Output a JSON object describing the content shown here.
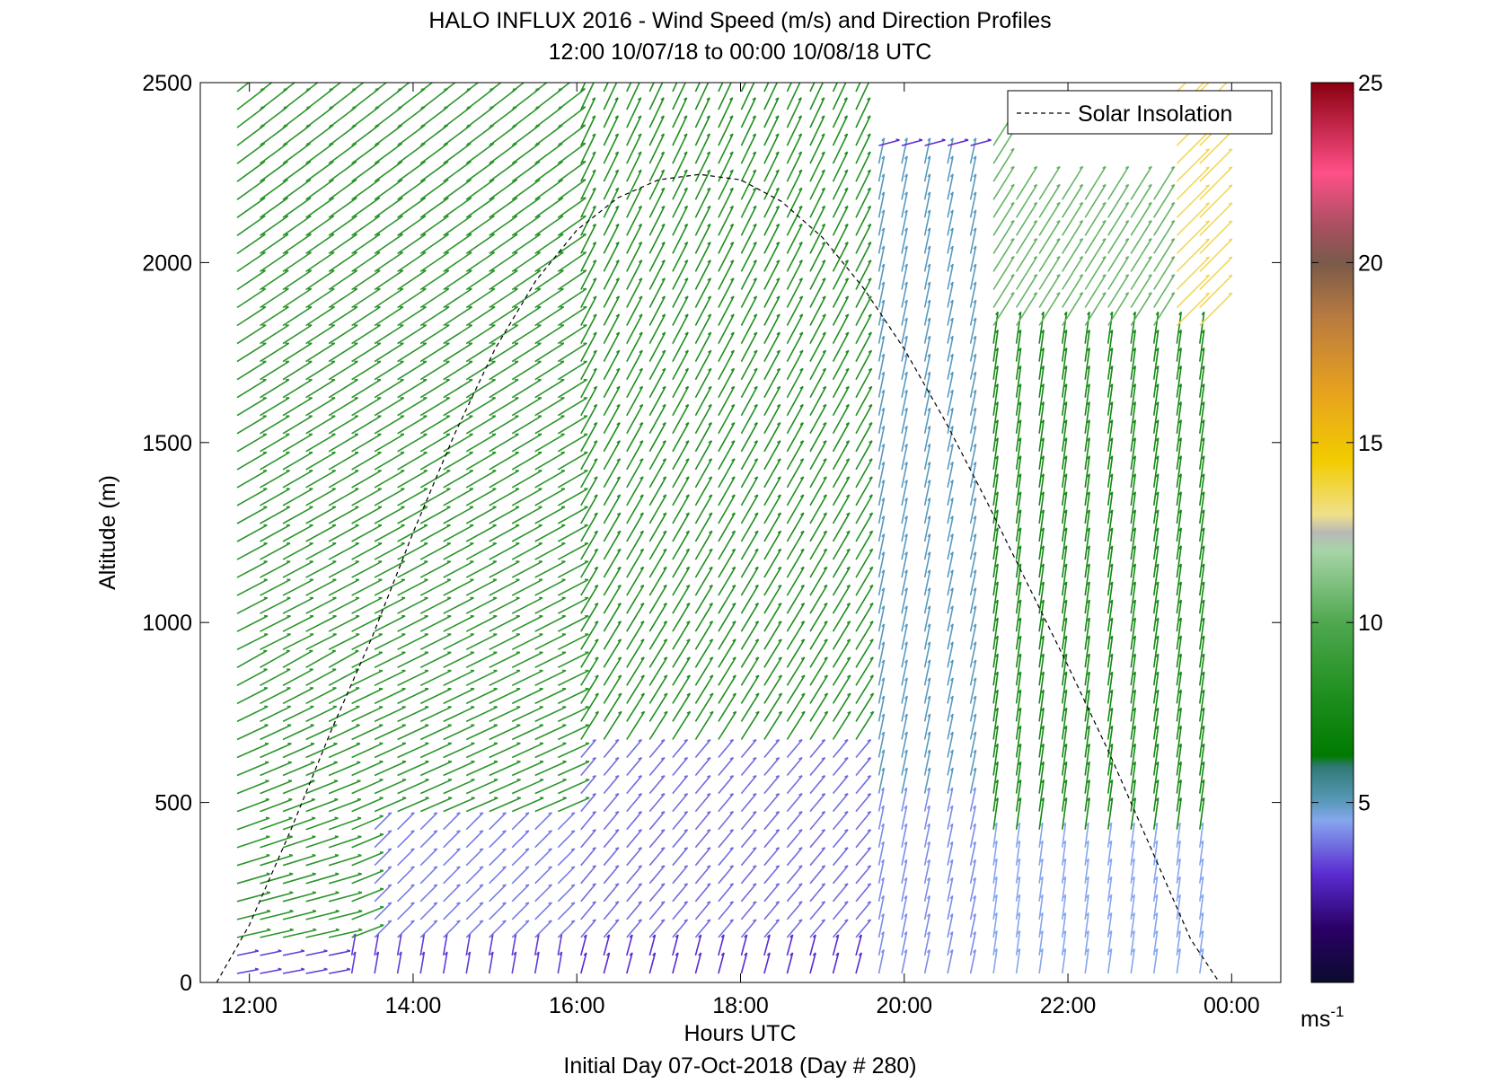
{
  "chart_data": {
    "type": "quiver",
    "title": "HALO INFLUX 2016 - Wind Speed (m/s) and Direction Profiles",
    "subtitle": "12:00 10/07/18 to 00:00 10/08/18  UTC",
    "xlabel": "Hours UTC",
    "ylabel": "Altitude (m)",
    "footer": "Initial Day 07-Oct-2018 (Day # 280)",
    "xlim": [
      11.4,
      24.6
    ],
    "ylim": [
      0,
      2500
    ],
    "x_ticks": [
      {
        "value": 12,
        "label": "12:00"
      },
      {
        "value": 14,
        "label": "14:00"
      },
      {
        "value": 16,
        "label": "16:00"
      },
      {
        "value": 18,
        "label": "18:00"
      },
      {
        "value": 20,
        "label": "20:00"
      },
      {
        "value": 22,
        "label": "22:00"
      },
      {
        "value": 24,
        "label": "00:00"
      }
    ],
    "y_ticks": [
      {
        "value": 0,
        "label": "0"
      },
      {
        "value": 500,
        "label": "500"
      },
      {
        "value": 1000,
        "label": "1000"
      },
      {
        "value": 1500,
        "label": "1500"
      },
      {
        "value": 2000,
        "label": "2000"
      },
      {
        "value": 2500,
        "label": "2500"
      }
    ],
    "legend": {
      "entries": [
        "Solar Insolation"
      ],
      "location": "top-right"
    },
    "colorbar": {
      "range": [
        0,
        25
      ],
      "ticks": [
        {
          "value": 5,
          "label": "5"
        },
        {
          "value": 10,
          "label": "10"
        },
        {
          "value": 15,
          "label": "15"
        },
        {
          "value": 20,
          "label": "20"
        },
        {
          "value": 25,
          "label": "25"
        }
      ],
      "unit_label": "ms",
      "unit_exp": "-1",
      "stops": [
        {
          "value": 0,
          "color": "#0b0b2e"
        },
        {
          "value": 1.5,
          "color": "#2a0066"
        },
        {
          "value": 3,
          "color": "#5a2bd0"
        },
        {
          "value": 4.5,
          "color": "#86a6ee"
        },
        {
          "value": 5,
          "color": "#5a9abc"
        },
        {
          "value": 6,
          "color": "#2f7a74"
        },
        {
          "value": 6.3,
          "color": "#007a00"
        },
        {
          "value": 8,
          "color": "#1f8f1f"
        },
        {
          "value": 10,
          "color": "#4fa84f"
        },
        {
          "value": 12,
          "color": "#a7d4a7"
        },
        {
          "value": 12.5,
          "color": "#b8b8b8"
        },
        {
          "value": 13,
          "color": "#f0e08a"
        },
        {
          "value": 14.5,
          "color": "#f2cc00"
        },
        {
          "value": 16.5,
          "color": "#e6a020"
        },
        {
          "value": 18.5,
          "color": "#b87a40"
        },
        {
          "value": 20,
          "color": "#7a5a4a"
        },
        {
          "value": 21,
          "color": "#a85060"
        },
        {
          "value": 22.5,
          "color": "#ff5088"
        },
        {
          "value": 25,
          "color": "#8a0010"
        }
      ]
    },
    "series": [
      {
        "name": "Solar Insolation",
        "style": "dashed",
        "color": "#000000",
        "x": [
          11.6,
          12.0,
          12.5,
          13.0,
          13.5,
          14.0,
          14.5,
          15.0,
          15.5,
          16.0,
          16.5,
          17.0,
          17.5,
          18.0,
          18.5,
          19.0,
          19.5,
          20.0,
          20.5,
          21.0,
          21.5,
          22.0,
          22.5,
          23.0,
          23.5,
          23.85
        ],
        "y": [
          0,
          160,
          420,
          700,
          960,
          1250,
          1520,
          1760,
          1950,
          2090,
          2180,
          2230,
          2245,
          2230,
          2170,
          2070,
          1930,
          1760,
          1560,
          1340,
          1110,
          880,
          640,
          380,
          120,
          0
        ]
      }
    ],
    "wind_field": {
      "description": "Wind barb vectors: 43 columns every ~16.8 min from ~12:00 to ~23:50, ~50 levels up to ~2475 m; color = speed (m/s)",
      "regimes": [
        {
          "x_range": [
            12.0,
            16.0
          ],
          "alt_range": [
            300,
            2475
          ],
          "speed": 8.5,
          "direction": "toward east-north-east, tilting more upward with height"
        },
        {
          "x_range": [
            13.5,
            16.0
          ],
          "alt_range": [
            0,
            500
          ],
          "speed": 4.0,
          "direction": "toward north-east"
        },
        {
          "x_range": [
            16.0,
            19.5
          ],
          "alt_range": [
            600,
            2475
          ],
          "speed": 8.0,
          "direction": "toward north-north-east"
        },
        {
          "x_range": [
            16.0,
            19.5
          ],
          "alt_range": [
            0,
            600
          ],
          "speed": 3.8,
          "direction": "toward north-east"
        },
        {
          "x_range": [
            19.5,
            21.0
          ],
          "alt_range": [
            0,
            2350
          ],
          "speed": 5.0,
          "direction": "toward north"
        },
        {
          "x_range": [
            20.3,
            21.0
          ],
          "alt_range": [
            2300,
            2500
          ],
          "speed": 3.0,
          "direction": "toward east"
        },
        {
          "x_range": [
            21.0,
            23.9
          ],
          "alt_range": [
            0,
            2150
          ],
          "speed": 7.5,
          "direction": "toward north"
        },
        {
          "x_range": [
            23.3,
            23.9
          ],
          "alt_range": [
            1800,
            2500
          ],
          "speed": 13.0,
          "direction": "toward north-east"
        }
      ]
    }
  }
}
